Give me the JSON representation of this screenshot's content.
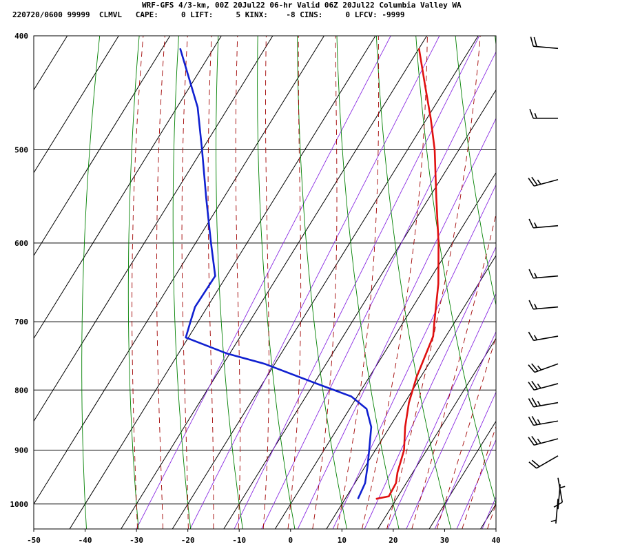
{
  "header": {
    "line1": "WRF-GFS 4/3-km, 00Z 20Jul22 06-hr Valid 06Z 20Jul22 Columbia Valley WA",
    "line2": "220720/0600 99999  CLMVL   CAPE:     0 LIFT:     5 KINX:    -8 CINS:     0 LFCV: -9999"
  },
  "chart_data": {
    "type": "skew-t",
    "xlim": [
      -50,
      40
    ],
    "x_ticks": [
      "-50",
      "-40",
      "-30",
      "-20",
      "-10",
      "0",
      "10",
      "20",
      "30",
      "40"
    ],
    "p_ticks": [
      "400",
      "500",
      "600",
      "700",
      "800",
      "900",
      "1000"
    ],
    "p_values": [
      400,
      500,
      600,
      700,
      800,
      900,
      1000
    ],
    "ptop": 400,
    "pbot": 1050,
    "colors": {
      "temperature": "#e01010",
      "dewpoint": "#1020d0",
      "isotherm": "#000000",
      "dry_adiabat": "#008000",
      "moist_adiabat": "#a00000",
      "mixing_ratio": "#8a2be2"
    },
    "temperature": [
      {
        "p": 990,
        "t": 16.0
      },
      {
        "p": 985,
        "t": 18.2
      },
      {
        "p": 960,
        "t": 18.0
      },
      {
        "p": 940,
        "t": 17.0
      },
      {
        "p": 900,
        "t": 15.6
      },
      {
        "p": 860,
        "t": 13.0
      },
      {
        "p": 820,
        "t": 10.8
      },
      {
        "p": 780,
        "t": 9.2
      },
      {
        "p": 720,
        "t": 7.5
      },
      {
        "p": 700,
        "t": 6.0
      },
      {
        "p": 650,
        "t": 2.2
      },
      {
        "p": 600,
        "t": -2.7
      },
      {
        "p": 550,
        "t": -8.5
      },
      {
        "p": 500,
        "t": -14.7
      },
      {
        "p": 470,
        "t": -19.3
      },
      {
        "p": 440,
        "t": -24.5
      },
      {
        "p": 410,
        "t": -30.0
      }
    ],
    "dewpoint": [
      {
        "p": 990,
        "t": 12.5
      },
      {
        "p": 960,
        "t": 12.0
      },
      {
        "p": 930,
        "t": 10.5
      },
      {
        "p": 900,
        "t": 8.8
      },
      {
        "p": 860,
        "t": 6.4
      },
      {
        "p": 830,
        "t": 3.3
      },
      {
        "p": 810,
        "t": -1.2
      },
      {
        "p": 790,
        "t": -9.5
      },
      {
        "p": 760,
        "t": -22.0
      },
      {
        "p": 745,
        "t": -30.5
      },
      {
        "p": 722,
        "t": -40.5
      },
      {
        "p": 700,
        "t": -41.5
      },
      {
        "p": 680,
        "t": -42.4
      },
      {
        "p": 640,
        "t": -42.2
      },
      {
        "p": 600,
        "t": -47.0
      },
      {
        "p": 550,
        "t": -53.3
      },
      {
        "p": 500,
        "t": -60.0
      },
      {
        "p": 460,
        "t": -66.0
      },
      {
        "p": 410,
        "t": -76.5
      }
    ],
    "wind_barbs": [
      {
        "p": 410,
        "dir": 275,
        "speed_kt": 20
      },
      {
        "p": 470,
        "dir": 270,
        "speed_kt": 15
      },
      {
        "p": 530,
        "dir": 255,
        "speed_kt": 25
      },
      {
        "p": 580,
        "dir": 265,
        "speed_kt": 15
      },
      {
        "p": 640,
        "dir": 265,
        "speed_kt": 15
      },
      {
        "p": 680,
        "dir": 265,
        "speed_kt": 15
      },
      {
        "p": 720,
        "dir": 260,
        "speed_kt": 15
      },
      {
        "p": 760,
        "dir": 250,
        "speed_kt": 25
      },
      {
        "p": 790,
        "dir": 255,
        "speed_kt": 25
      },
      {
        "p": 820,
        "dir": 260,
        "speed_kt": 25
      },
      {
        "p": 850,
        "dir": 260,
        "speed_kt": 25
      },
      {
        "p": 880,
        "dir": 255,
        "speed_kt": 25
      },
      {
        "p": 910,
        "dir": 240,
        "speed_kt": 20
      },
      {
        "p": 950,
        "dir": 170,
        "speed_kt": 10
      },
      {
        "p": 990,
        "dir": 185,
        "speed_kt": 5
      },
      {
        "p": 1010,
        "dir": 5,
        "speed_kt": 5
      }
    ]
  }
}
